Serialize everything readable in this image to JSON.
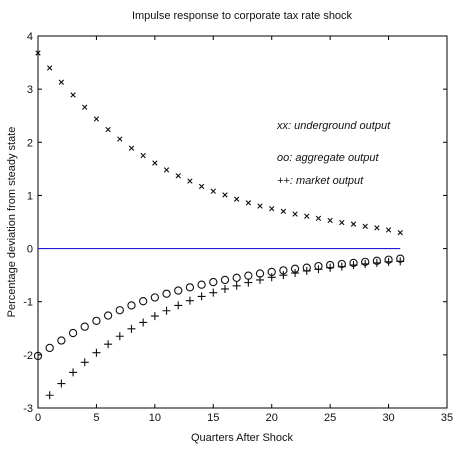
{
  "chart_data": {
    "type": "scatter",
    "title": "Impulse response to corporate tax rate shock",
    "xlabel": "Quarters After Shock",
    "ylabel": "Percentage deviation from steady state",
    "xlim": [
      0,
      35
    ],
    "ylim": [
      -3,
      4
    ],
    "xticks": [
      "0",
      "5",
      "10",
      "15",
      "20",
      "25",
      "30",
      "35"
    ],
    "yticks": [
      "-3",
      "-2",
      "-1",
      "0",
      "1",
      "2",
      "3",
      "4"
    ],
    "grid": false,
    "legend_position": "upper-right",
    "zero_line_color": "#1f1fcf",
    "series": [
      {
        "name": "xx: underground output",
        "marker": "x",
        "x": [
          0,
          1,
          2,
          3,
          4,
          5,
          6,
          7,
          8,
          9,
          10,
          11,
          12,
          13,
          14,
          15,
          16,
          17,
          18,
          19,
          20,
          21,
          22,
          23,
          24,
          25,
          26,
          27,
          28,
          29,
          30,
          31
        ],
        "values": [
          3.68,
          3.4,
          3.13,
          2.89,
          2.66,
          2.44,
          2.24,
          2.06,
          1.89,
          1.75,
          1.61,
          1.48,
          1.37,
          1.27,
          1.17,
          1.08,
          1.01,
          0.93,
          0.86,
          0.8,
          0.75,
          0.7,
          0.65,
          0.61,
          0.57,
          0.53,
          0.49,
          0.46,
          0.42,
          0.39,
          0.35,
          0.3
        ]
      },
      {
        "name": "oo: aggregate output",
        "marker": "o",
        "x": [
          0,
          1,
          2,
          3,
          4,
          5,
          6,
          7,
          8,
          9,
          10,
          11,
          12,
          13,
          14,
          15,
          16,
          17,
          18,
          19,
          20,
          21,
          22,
          23,
          24,
          25,
          26,
          27,
          28,
          29,
          30,
          31
        ],
        "values": [
          -2.02,
          -1.87,
          -1.73,
          -1.59,
          -1.47,
          -1.36,
          -1.26,
          -1.16,
          -1.07,
          -0.99,
          -0.92,
          -0.85,
          -0.79,
          -0.73,
          -0.68,
          -0.63,
          -0.59,
          -0.55,
          -0.51,
          -0.47,
          -0.44,
          -0.41,
          -0.38,
          -0.36,
          -0.33,
          -0.31,
          -0.29,
          -0.27,
          -0.25,
          -0.23,
          -0.21,
          -0.19
        ]
      },
      {
        "name": "++: market output",
        "marker": "+",
        "x": [
          1,
          2,
          3,
          4,
          5,
          6,
          7,
          8,
          9,
          10,
          11,
          12,
          13,
          14,
          15,
          16,
          17,
          18,
          19,
          20,
          21,
          22,
          23,
          24,
          25,
          26,
          27,
          28,
          29,
          30,
          31
        ],
        "values": [
          -2.76,
          -2.54,
          -2.33,
          -2.14,
          -1.96,
          -1.8,
          -1.65,
          -1.51,
          -1.39,
          -1.27,
          -1.17,
          -1.07,
          -0.98,
          -0.9,
          -0.83,
          -0.76,
          -0.7,
          -0.64,
          -0.59,
          -0.54,
          -0.5,
          -0.46,
          -0.42,
          -0.39,
          -0.36,
          -0.34,
          -0.31,
          -0.29,
          -0.27,
          -0.25,
          -0.24
        ]
      }
    ]
  }
}
